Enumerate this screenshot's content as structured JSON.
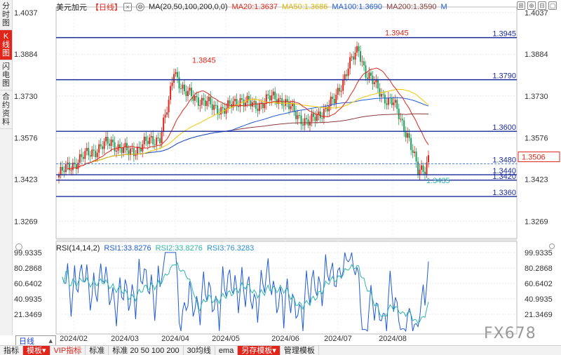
{
  "tabs": [
    {
      "label": "分时图",
      "chars": [
        "分",
        "时",
        "图"
      ],
      "active": false
    },
    {
      "label": "K线图",
      "chars": [
        "K",
        "线",
        "图"
      ],
      "active": true
    },
    {
      "label": "闪电图",
      "chars": [
        "闪",
        "电",
        "图"
      ],
      "active": false
    },
    {
      "label": "合约资料",
      "chars": [
        "合",
        "约",
        "资",
        "料"
      ],
      "active": false
    }
  ],
  "header": {
    "symbol": "美元加元",
    "timeframe_bracket": "【日线】",
    "ma_params": "MA(20,50,100,200,0,0)",
    "ma20": "MA20:1.3637",
    "ma50": "MA50:1.3686",
    "ma100": "MA100:1.3690",
    "ma200": "MA200:1.3590",
    "m_button": "M",
    "colors": {
      "ma20": "#e1251b",
      "ma50": "#f0c800",
      "ma100": "#1f5bd6",
      "ma200": "#8b3a3a"
    }
  },
  "price_axis": {
    "labels": [
      "1.4037",
      "1.3884",
      "1.3730",
      "1.3576",
      "1.3423",
      "1.3269"
    ],
    "current": "1.3506"
  },
  "levels": [
    {
      "value": 1.3945,
      "label": "1.3945"
    },
    {
      "value": 1.379,
      "label": "1.3790"
    },
    {
      "value": 1.36,
      "label": "1.3600"
    },
    {
      "value": 1.348,
      "label": "1.3480"
    },
    {
      "value": 1.344,
      "label": "1.3440"
    },
    {
      "value": 1.342,
      "label": "1.3420"
    },
    {
      "value": 1.336,
      "label": "1.3360"
    }
  ],
  "annotations": {
    "high1": "1.3845",
    "high2": "1.3945",
    "low": "1.3435"
  },
  "rsi": {
    "params": "RSI(14,14,2)",
    "rsi1": "RSI1:33.8276",
    "rsi2": "RSI2:33.8276",
    "rsi3": "RSI3:76.3283",
    "axis": [
      "99.9335",
      "80.2868",
      "60.6402",
      "40.9935",
      "21.3469"
    ],
    "colors": {
      "rsi1": "#1f5bd6",
      "rsi2": "#2bb7a7",
      "rsi3": "#2b8fd6"
    }
  },
  "x_axis": {
    "labels": [
      "2024/02",
      "2024/03",
      "2024/04",
      "2024/05",
      "2024/06",
      "2024/07",
      "2024/08"
    ]
  },
  "timeframe_selector": {
    "value": "日线"
  },
  "bottom_bar": [
    {
      "label": "指标",
      "style": "plain"
    },
    {
      "label": "模板",
      "style": "red"
    },
    {
      "label": "VIP指标",
      "style": "arrow"
    },
    {
      "label": "标准",
      "style": "plain"
    },
    {
      "label": "标准 20 50 100 200",
      "style": "plain"
    },
    {
      "label": "30均线",
      "style": "plain"
    },
    {
      "label": "ema",
      "style": "plain"
    },
    {
      "label": "另存模板",
      "style": "red"
    },
    {
      "label": "管理模板",
      "style": "plain"
    }
  ],
  "watermark": "FX678"
}
